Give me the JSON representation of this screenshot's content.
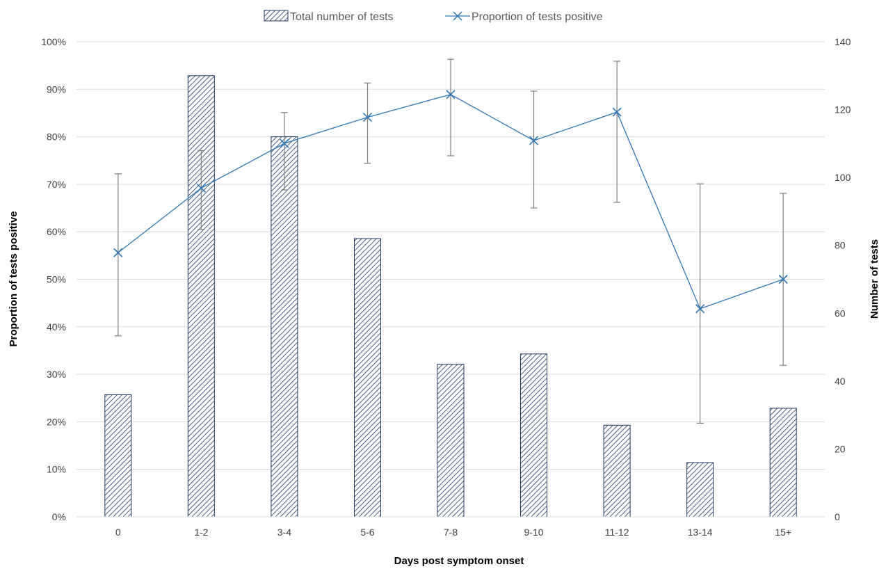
{
  "chart_data": {
    "type": "bar",
    "categories": [
      "0",
      "1-2",
      "3-4",
      "5-6",
      "7-8",
      "9-10",
      "11-12",
      "13-14",
      "15+"
    ],
    "series": [
      {
        "name": "Total number of tests",
        "type": "bar",
        "axis": "right",
        "values": [
          36,
          130,
          112,
          82,
          45,
          48,
          27,
          16,
          32
        ]
      },
      {
        "name": "Proportion of tests positive",
        "type": "line",
        "axis": "left",
        "values": [
          0.556,
          0.692,
          0.786,
          0.841,
          0.889,
          0.792,
          0.852,
          0.438,
          0.5
        ],
        "error_low": [
          0.381,
          0.605,
          0.688,
          0.744,
          0.76,
          0.65,
          0.662,
          0.197,
          0.319
        ],
        "error_high": [
          0.722,
          0.771,
          0.851,
          0.913,
          0.963,
          0.896,
          0.959,
          0.701,
          0.681
        ]
      }
    ],
    "xlabel": "Days post symptom onset",
    "ylabel_left": "Proportion of tests positive",
    "ylabel_right": "Number of tests",
    "ylim_left": [
      0,
      1
    ],
    "ylim_right": [
      0,
      140
    ],
    "yticks_left": [
      "0%",
      "10%",
      "20%",
      "30%",
      "40%",
      "50%",
      "60%",
      "70%",
      "80%",
      "90%",
      "100%"
    ],
    "yticks_right": [
      "0",
      "20",
      "40",
      "60",
      "80",
      "100",
      "120",
      "140"
    ],
    "grid": true,
    "legend_position": "top-center",
    "colors": {
      "bar_fill": "#ffffff",
      "bar_hatch": "#1f3864",
      "line": "#2e75b6",
      "error_bar": "#7f7f7f",
      "grid": "#d9d9d9"
    }
  }
}
